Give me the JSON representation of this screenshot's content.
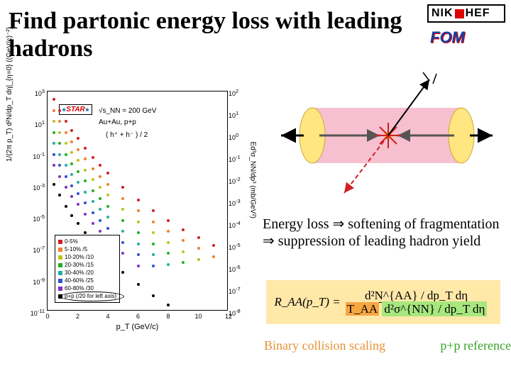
{
  "title": "Find partonic energy loss with leading hadrons",
  "logos": {
    "nikhef": "NIK  HEF",
    "fom": "FOM"
  },
  "chart": {
    "type": "scatter",
    "axis_left_label": "1/(2π p_T) d²N/dp_T dη|_{η=0} ((GeV/c)⁻²)",
    "axis_right_label": "Ed³σ_NN/dp³ (mb/GeV²)",
    "axis_bottom_label": "p_T (GeV/c)",
    "text_energy": "√s_NN = 200 GeV",
    "text_system": "Au+Au, p+p",
    "text_channel": "( h⁺ + h⁻ ) / 2",
    "star_label": "STAR",
    "x_ticks": [
      0,
      2,
      4,
      6,
      8,
      10,
      12
    ],
    "y_ticks_left_exp": [
      3,
      1,
      -1,
      -3,
      -5,
      -7,
      -9,
      -11
    ],
    "y_ticks_right_exp": [
      2,
      1,
      0,
      -1,
      -2,
      -3,
      -4,
      -5,
      -6,
      -7,
      -8
    ],
    "y_left_range_exp": [
      -11,
      3
    ],
    "y_right_range_exp": [
      -8,
      2
    ],
    "x_range": [
      0,
      12
    ],
    "background_color": "#ffffff",
    "point_size": 4,
    "font_size_axis": 10,
    "font_size_tick": 9,
    "legend": [
      {
        "label": "0-5%",
        "color": "#d02020",
        "suffix": ""
      },
      {
        "label": "5-10% /5",
        "color": "#f08030",
        "suffix": ""
      },
      {
        "label": "10-20% /10",
        "color": "#c0c020",
        "suffix": ""
      },
      {
        "label": "20-30% /15",
        "color": "#20b020",
        "suffix": ""
      },
      {
        "label": "30-40% /20",
        "color": "#20b0a0",
        "suffix": ""
      },
      {
        "label": "40-60% /25",
        "color": "#3050d0",
        "suffix": ""
      },
      {
        "label": "60-80% /30",
        "color": "#8030c0",
        "suffix": ""
      },
      {
        "label": "p+p (/20 for left axis)",
        "color": "#000000",
        "suffix": ""
      }
    ],
    "series": [
      {
        "name": "0-5%",
        "color": "#d02020",
        "offset_exp": 0,
        "points": [
          [
            0.4,
            2.5
          ],
          [
            0.8,
            1.8
          ],
          [
            1.2,
            1.1
          ],
          [
            1.6,
            0.5
          ],
          [
            2.0,
            0.0
          ],
          [
            2.5,
            -0.6
          ],
          [
            3.0,
            -1.2
          ],
          [
            3.5,
            -1.7
          ],
          [
            4.0,
            -2.2
          ],
          [
            5.0,
            -3.1
          ],
          [
            6.0,
            -3.9
          ],
          [
            7.0,
            -4.6
          ],
          [
            8.0,
            -5.2
          ],
          [
            9.0,
            -5.8
          ],
          [
            10.0,
            -6.3
          ],
          [
            11.0,
            -6.8
          ]
        ]
      },
      {
        "name": "5-10%",
        "color": "#f08030",
        "offset_exp": -0.7,
        "points": [
          [
            0.4,
            2.5
          ],
          [
            0.8,
            1.8
          ],
          [
            1.2,
            1.1
          ],
          [
            1.6,
            0.5
          ],
          [
            2.0,
            0.0
          ],
          [
            2.5,
            -0.6
          ],
          [
            3.0,
            -1.2
          ],
          [
            3.5,
            -1.7
          ],
          [
            4.0,
            -2.2
          ],
          [
            5.0,
            -3.1
          ],
          [
            6.0,
            -3.9
          ],
          [
            7.0,
            -4.6
          ],
          [
            8.0,
            -5.2
          ],
          [
            9.0,
            -5.8
          ],
          [
            10.0,
            -6.3
          ],
          [
            11.0,
            -6.8
          ]
        ]
      },
      {
        "name": "10-20%",
        "color": "#c0c020",
        "offset_exp": -1.4,
        "points": [
          [
            0.4,
            2.5
          ],
          [
            0.8,
            1.8
          ],
          [
            1.2,
            1.1
          ],
          [
            1.6,
            0.5
          ],
          [
            2.0,
            0.0
          ],
          [
            2.5,
            -0.6
          ],
          [
            3.0,
            -1.2
          ],
          [
            3.5,
            -1.7
          ],
          [
            4.0,
            -2.2
          ],
          [
            5.0,
            -3.1
          ],
          [
            6.0,
            -3.9
          ],
          [
            7.0,
            -4.6
          ],
          [
            8.0,
            -5.2
          ],
          [
            9.0,
            -5.8
          ],
          [
            10.0,
            -6.3
          ]
        ]
      },
      {
        "name": "20-30%",
        "color": "#20b020",
        "offset_exp": -2.1,
        "points": [
          [
            0.4,
            2.5
          ],
          [
            0.8,
            1.8
          ],
          [
            1.2,
            1.1
          ],
          [
            1.6,
            0.5
          ],
          [
            2.0,
            0.0
          ],
          [
            2.5,
            -0.6
          ],
          [
            3.0,
            -1.2
          ],
          [
            3.5,
            -1.7
          ],
          [
            4.0,
            -2.2
          ],
          [
            5.0,
            -3.1
          ],
          [
            6.0,
            -3.9
          ],
          [
            7.0,
            -4.6
          ],
          [
            8.0,
            -5.2
          ],
          [
            9.0,
            -5.8
          ]
        ]
      },
      {
        "name": "30-40%",
        "color": "#20b0a0",
        "offset_exp": -2.8,
        "points": [
          [
            0.4,
            2.5
          ],
          [
            0.8,
            1.8
          ],
          [
            1.2,
            1.1
          ],
          [
            1.6,
            0.5
          ],
          [
            2.0,
            0.0
          ],
          [
            2.5,
            -0.6
          ],
          [
            3.0,
            -1.2
          ],
          [
            3.5,
            -1.7
          ],
          [
            4.0,
            -2.2
          ],
          [
            5.0,
            -3.1
          ],
          [
            6.0,
            -3.9
          ],
          [
            7.0,
            -4.6
          ],
          [
            8.0,
            -5.2
          ]
        ]
      },
      {
        "name": "40-60%",
        "color": "#3050d0",
        "offset_exp": -3.5,
        "points": [
          [
            0.4,
            2.5
          ],
          [
            0.8,
            1.8
          ],
          [
            1.2,
            1.1
          ],
          [
            1.6,
            0.5
          ],
          [
            2.0,
            0.0
          ],
          [
            2.5,
            -0.6
          ],
          [
            3.0,
            -1.2
          ],
          [
            3.5,
            -1.7
          ],
          [
            4.0,
            -2.2
          ],
          [
            5.0,
            -3.1
          ],
          [
            6.0,
            -3.9
          ],
          [
            7.0,
            -4.6
          ]
        ]
      },
      {
        "name": "60-80%",
        "color": "#8030c0",
        "offset_exp": -4.2,
        "points": [
          [
            0.4,
            2.5
          ],
          [
            0.8,
            1.8
          ],
          [
            1.2,
            1.1
          ],
          [
            1.6,
            0.5
          ],
          [
            2.0,
            0.0
          ],
          [
            2.5,
            -0.6
          ],
          [
            3.0,
            -1.2
          ],
          [
            3.5,
            -1.7
          ],
          [
            4.0,
            -2.2
          ],
          [
            5.0,
            -3.1
          ],
          [
            6.0,
            -3.9
          ]
        ]
      },
      {
        "name": "p+p",
        "color": "#000000",
        "offset_exp": -5.4,
        "points": [
          [
            0.4,
            2.5
          ],
          [
            0.8,
            1.8
          ],
          [
            1.2,
            1.1
          ],
          [
            1.6,
            0.5
          ],
          [
            2.0,
            0.0
          ],
          [
            2.5,
            -0.6
          ],
          [
            3.0,
            -1.2
          ],
          [
            3.5,
            -1.7
          ],
          [
            4.0,
            -2.2
          ],
          [
            5.0,
            -3.1
          ],
          [
            6.0,
            -3.9
          ],
          [
            7.0,
            -4.6
          ],
          [
            8.0,
            -5.2
          ]
        ]
      }
    ]
  },
  "diagram": {
    "cylinder_fill": "#f6b5c8",
    "cylinder_endcap": "#ffe680",
    "arrow_color": "#000000",
    "jet_red_dash": "#d02020",
    "star_burst": "#d02020"
  },
  "body_text": "Energy loss ⇒ softening of fragmentation ⇒ suppression of leading hadron yield",
  "formula": {
    "lhs": "R_AA(p_T) =",
    "num": "d²N^{AA} / dp_T dη",
    "den_taa": "T_AA",
    "den_rest": "d²σ^{NN} / dp_T dη",
    "bg": "#ffe8a8",
    "hi_orange": "#f7a642",
    "hi_green": "#a7e77e"
  },
  "captions": {
    "left": "Binary collision scaling",
    "right": "p+p reference",
    "left_color": "#e69138",
    "right_color": "#38a22a"
  }
}
